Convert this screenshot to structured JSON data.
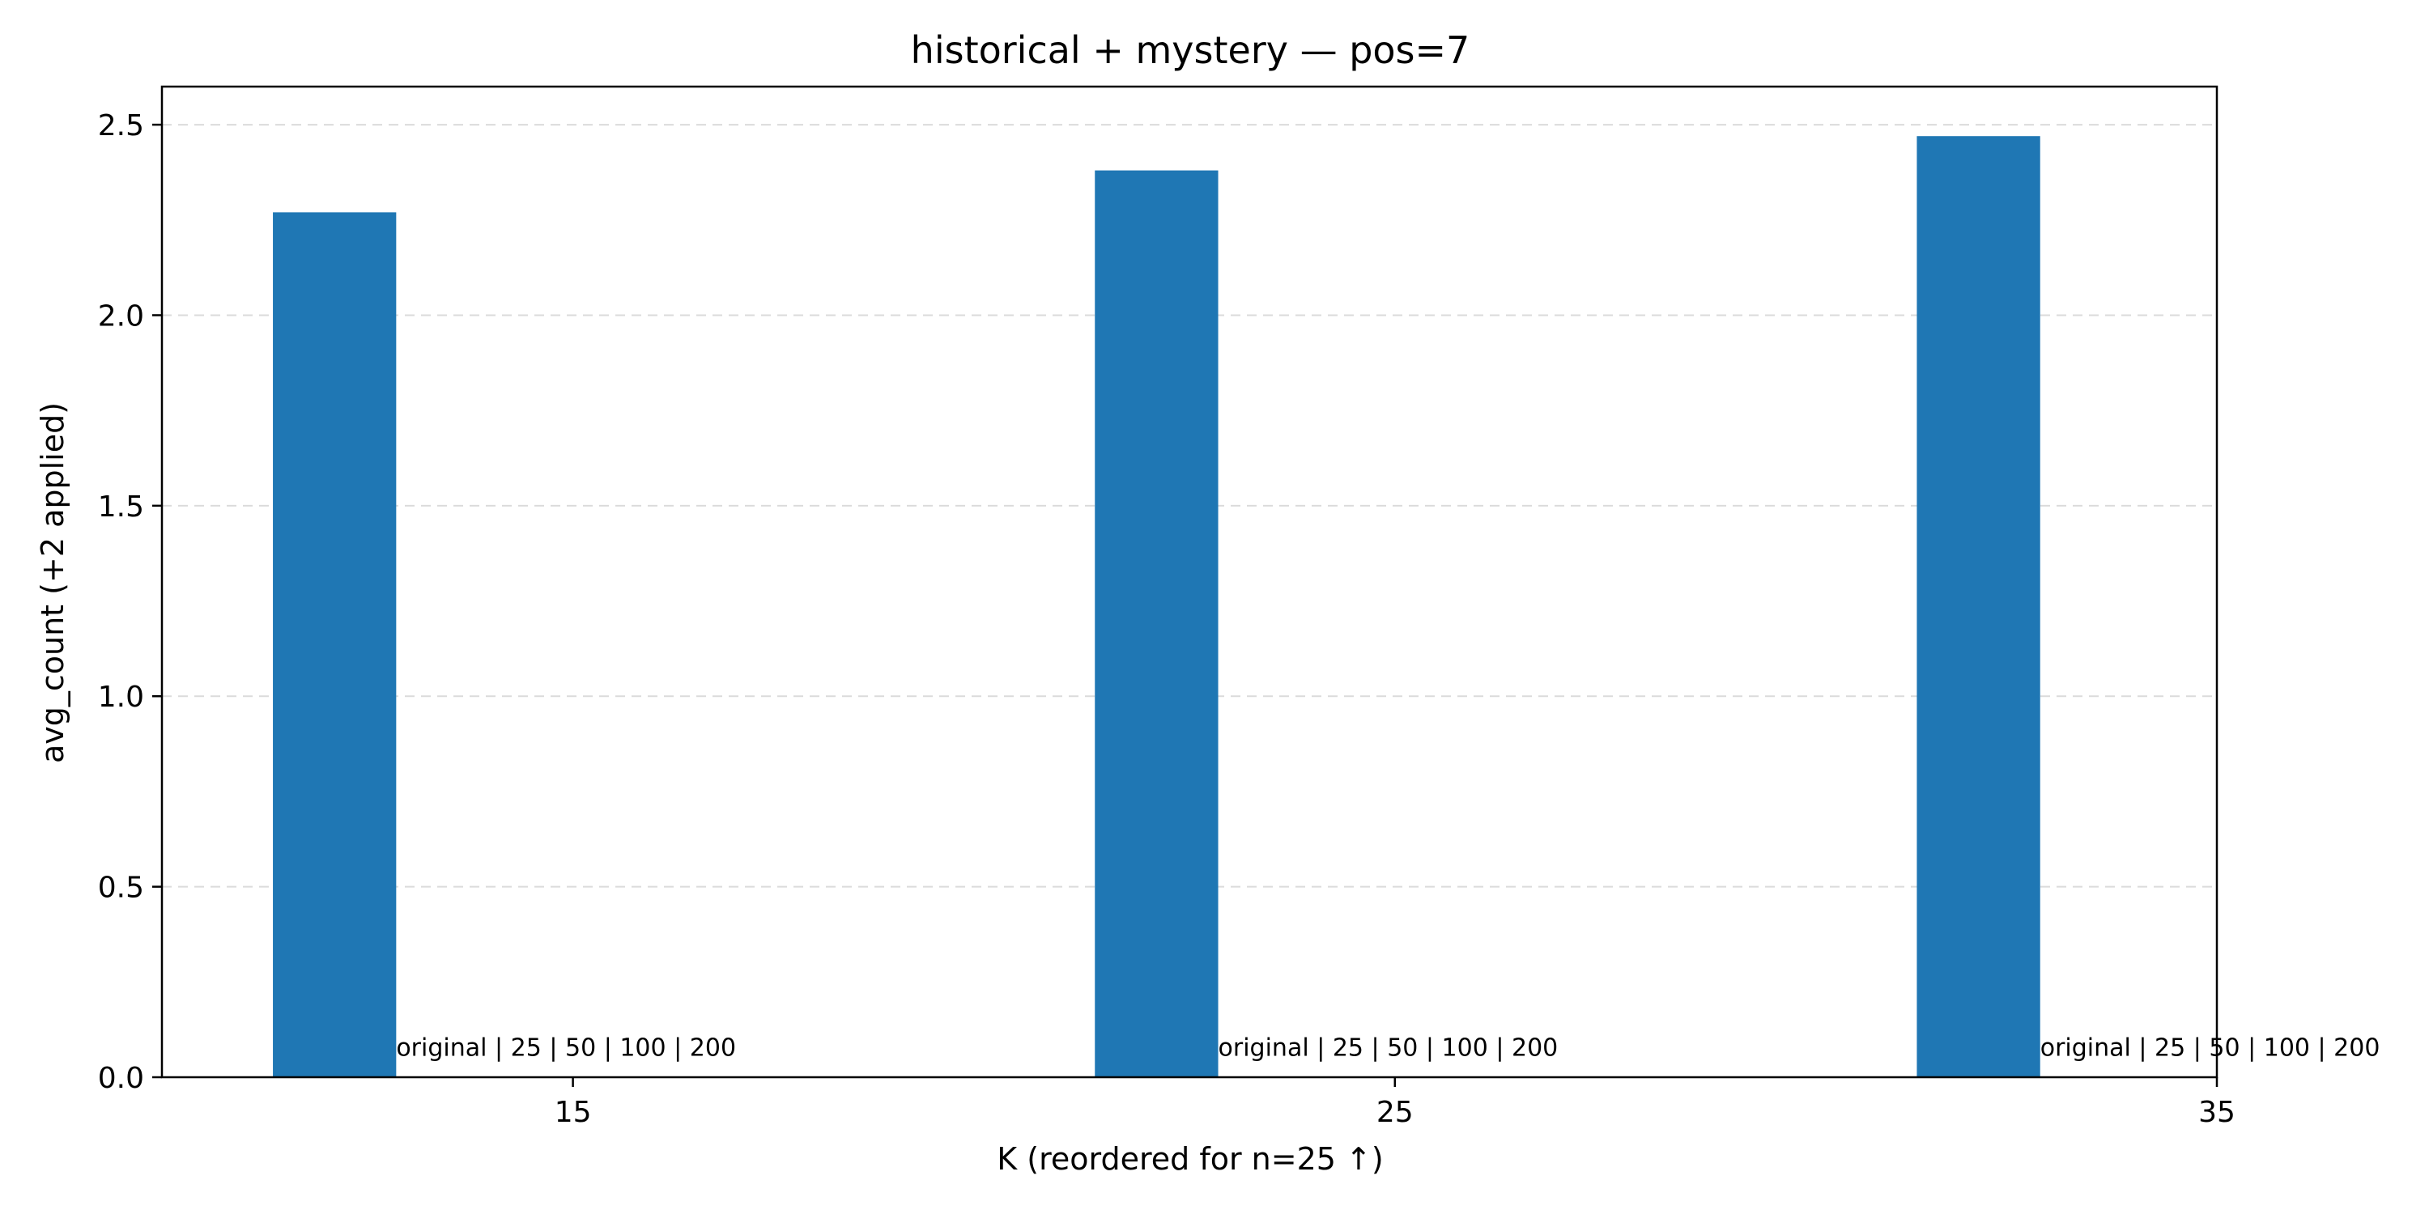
{
  "chart_data": {
    "type": "bar",
    "title": "historical + mystery — pos=7",
    "xlabel": "K (reordered for n=25 ↑)",
    "ylabel": "avg_count (+2 applied)",
    "xlim": [
      10,
      35
    ],
    "ylim": [
      0,
      2.6
    ],
    "x_ticks": [
      15,
      25,
      35
    ],
    "x_tick_labels": [
      "15",
      "25",
      "35"
    ],
    "y_ticks": [
      0.0,
      0.5,
      1.0,
      1.5,
      2.0,
      2.5
    ],
    "y_tick_labels": [
      "0.0",
      "0.5",
      "1.0",
      "1.5",
      "2.0",
      "2.5"
    ],
    "bar_width": 1.5,
    "bars": [
      {
        "x": 12.1,
        "value": 2.27
      },
      {
        "x": 22.1,
        "value": 2.38
      },
      {
        "x": 32.1,
        "value": 2.47
      }
    ],
    "annotations": [
      {
        "x": 12.85,
        "y": 0.05,
        "text": "original | 25 | 50 | 100 | 200"
      },
      {
        "x": 22.85,
        "y": 0.05,
        "text": "original | 25 | 50 | 100 | 200"
      },
      {
        "x": 32.85,
        "y": 0.05,
        "text": "original | 25 | 50 | 100 | 200"
      }
    ],
    "grid": "y-dashed",
    "colors": {
      "bar": "#1f77b4"
    }
  }
}
